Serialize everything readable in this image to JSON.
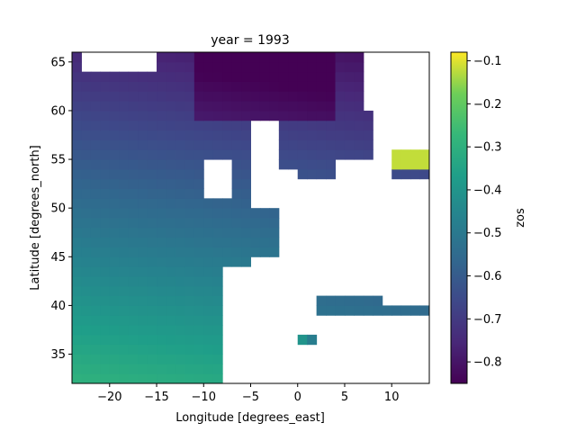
{
  "chart_data": {
    "type": "heatmap",
    "title": "year = 1993",
    "xlabel": "Longitude [degrees_east]",
    "ylabel": "Latitude [degrees_north]",
    "colorbar_label": "zos",
    "colormap": "viridis",
    "vmin": -0.85,
    "vmax": -0.08,
    "xlim": [
      -24,
      14
    ],
    "ylim": [
      32,
      66
    ],
    "x_ticks": [
      -20,
      -15,
      -10,
      -5,
      0,
      5,
      10
    ],
    "x_tick_labels": [
      "−20",
      "−15",
      "−10",
      "−5",
      "0",
      "5",
      "10"
    ],
    "y_ticks": [
      35,
      40,
      45,
      50,
      55,
      60,
      65
    ],
    "y_tick_labels": [
      "35",
      "40",
      "45",
      "50",
      "55",
      "60",
      "65"
    ],
    "colorbar_ticks": [
      -0.8,
      -0.7,
      -0.6,
      -0.5,
      -0.4,
      -0.3,
      -0.2,
      -0.1
    ],
    "colorbar_tick_labels": [
      "−0.8",
      "−0.7",
      "−0.6",
      "−0.5",
      "−0.4",
      "−0.3",
      "−0.2",
      "−0.1"
    ],
    "grid_resolution_deg": 1,
    "grid": false,
    "land_masks": [
      {
        "lon": [
          -8,
          14
        ],
        "lat": [
          32,
          36
        ]
      },
      {
        "lon": [
          2,
          14
        ],
        "lat": [
          36,
          39
        ]
      },
      {
        "lon": [
          -8,
          0
        ],
        "lat": [
          35,
          37
        ]
      },
      {
        "lon": [
          -8,
          -2
        ],
        "lat": [
          36,
          44
        ]
      },
      {
        "lon": [
          -5,
          2
        ],
        "lat": [
          37,
          45
        ]
      },
      {
        "lon": [
          -2,
          14
        ],
        "lat": [
          41,
          50
        ]
      },
      {
        "lon": [
          0,
          6
        ],
        "lat": [
          45,
          51
        ]
      },
      {
        "lon": [
          7,
          14
        ],
        "lat": [
          43,
          48
        ]
      },
      {
        "lon": [
          9,
          14
        ],
        "lat": [
          40,
          44
        ]
      },
      {
        "lon": [
          -2,
          14
        ],
        "lat": [
          48,
          53
        ]
      },
      {
        "lon": [
          4,
          10
        ],
        "lat": [
          51,
          55
        ]
      },
      {
        "lon": [
          8,
          10
        ],
        "lat": [
          53,
          58
        ]
      },
      {
        "lon": [
          10,
          14
        ],
        "lat": [
          56,
          66
        ]
      },
      {
        "lon": [
          7,
          10
        ],
        "lat": [
          60,
          66
        ]
      },
      {
        "lon": [
          8,
          11
        ],
        "lat": [
          58,
          60
        ]
      },
      {
        "lon": [
          -5,
          -2
        ],
        "lat": [
          50,
          59
        ]
      },
      {
        "lon": [
          -3,
          0
        ],
        "lat": [
          51,
          54
        ]
      },
      {
        "lon": [
          -10,
          -7
        ],
        "lat": [
          51,
          55
        ]
      },
      {
        "lon": [
          -23,
          -15
        ],
        "lat": [
          64,
          66
        ]
      }
    ]
  }
}
